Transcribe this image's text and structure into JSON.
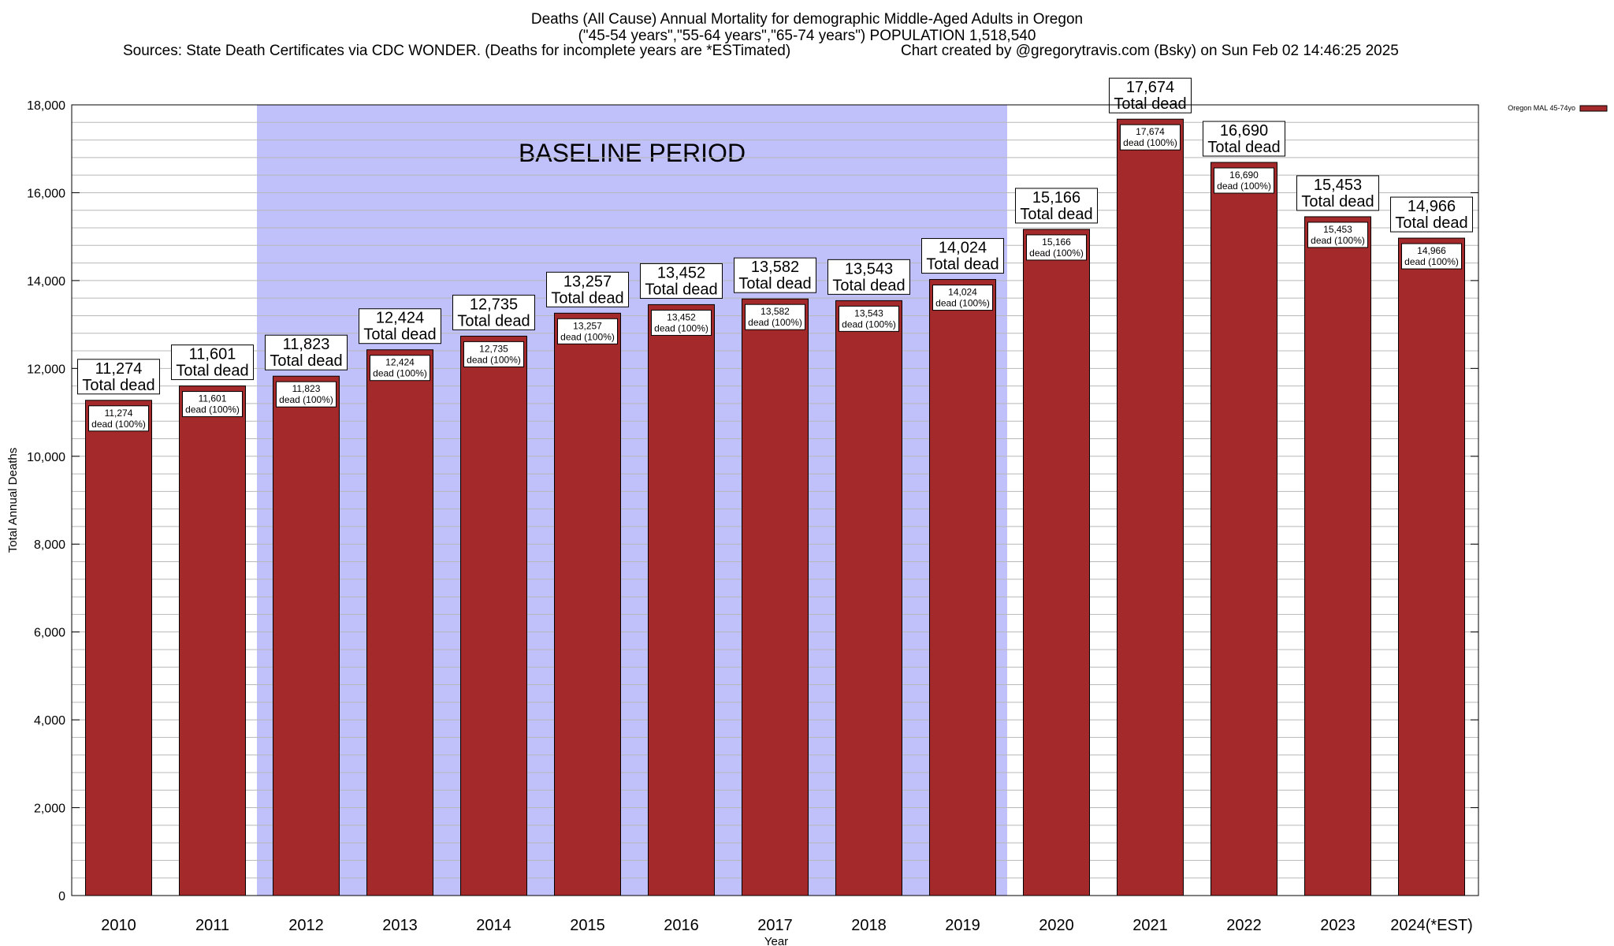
{
  "chart_data": {
    "type": "bar",
    "title_lines": [
      "Deaths (All Cause) Annual Mortality for demographic Middle-Aged Adults in Oregon",
      "(\"45-54 years\",\"55-64 years\",\"65-74 years\") POPULATION 1,518,540"
    ],
    "sources": "Sources: State Death Certificates via CDC WONDER. (Deaths for incomplete years are *ESTimated)",
    "credit": "Chart created by @gregorytravis.com (Bsky) on Sun Feb 02 14:46:25 2025",
    "xlabel": "Year",
    "ylabel": "Total Annual Deaths",
    "ylim": [
      0,
      18000
    ],
    "y_ticks": [
      0,
      2000,
      4000,
      6000,
      8000,
      10000,
      12000,
      14000,
      16000,
      18000
    ],
    "y_tick_labels": [
      "0",
      "2,000",
      "4,000",
      "6,000",
      "8,000",
      "10,000",
      "12,000",
      "14,000",
      "16,000",
      "18,000"
    ],
    "minor_gridline_step": 400,
    "grid": true,
    "legend_position": "top-right",
    "categories": [
      "2010",
      "2011",
      "2012",
      "2013",
      "2014",
      "2015",
      "2016",
      "2017",
      "2018",
      "2019",
      "2020",
      "2021",
      "2022",
      "2023",
      "2024(*EST)"
    ],
    "series": [
      {
        "name": "Oregon MAL 45-74yo",
        "color": "#a4292a",
        "values": [
          11274,
          11601,
          11823,
          12424,
          12735,
          13257,
          13452,
          13582,
          13543,
          14024,
          15166,
          17674,
          16690,
          15453,
          14966
        ]
      }
    ],
    "value_labels": [
      "11,274",
      "11,601",
      "11,823",
      "12,424",
      "12,735",
      "13,257",
      "13,452",
      "13,582",
      "13,543",
      "14,024",
      "15,166",
      "17,674",
      "16,690",
      "15,453",
      "14,966"
    ],
    "total_label_suffix": "Total dead",
    "inner_label_suffix": "dead (100%)",
    "baseline": {
      "label": "BASELINE PERIOD",
      "from": "2012",
      "to": "2019",
      "color": "#c0c0fa"
    }
  }
}
